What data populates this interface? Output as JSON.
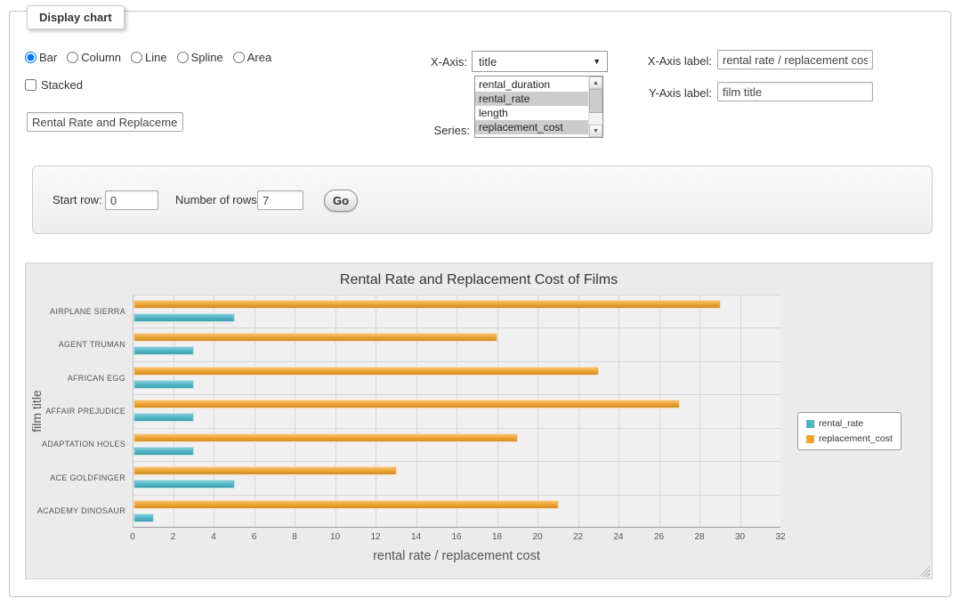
{
  "panel": {
    "legend": "Display chart",
    "chart_type_options": [
      "Bar",
      "Column",
      "Line",
      "Spline",
      "Area"
    ],
    "selected_chart_type": "Bar",
    "stacked_label": "Stacked",
    "stacked_checked": false,
    "title_input_value": "Rental Rate and Replacement Cost of Films",
    "xaxis": {
      "label": "X-Axis:",
      "value": "title"
    },
    "series_picker": {
      "label": "Series:",
      "options": [
        "rental_duration",
        "rental_rate",
        "length",
        "replacement_cost"
      ],
      "selected": [
        "rental_rate",
        "replacement_cost"
      ]
    },
    "xaxis_label": {
      "label": "X-Axis label:",
      "value": "rental rate / replacement cost"
    },
    "yaxis_label": {
      "label": "Y-Axis label:",
      "value": "film title"
    }
  },
  "row_controls": {
    "start_row_label": "Start row:",
    "start_row_value": "0",
    "num_rows_label": "Number of rows:",
    "num_rows_value": "7",
    "go_label": "Go"
  },
  "chart_data": {
    "type": "bar",
    "orientation": "horizontal",
    "title": "Rental Rate and Replacement Cost of Films",
    "categories": [
      "AIRPLANE SIERRA",
      "AGENT TRUMAN",
      "AFRICAN EGG",
      "AFFAIR PREJUDICE",
      "ADAPTATION HOLES",
      "ACE GOLDFINGER",
      "ACADEMY DINOSAUR"
    ],
    "series": [
      {
        "name": "rental_rate",
        "color": "#4db7c6",
        "values": [
          4.99,
          2.99,
          2.99,
          2.99,
          2.99,
          4.99,
          0.99
        ]
      },
      {
        "name": "replacement_cost",
        "color": "#f0a42e",
        "values": [
          28.99,
          17.99,
          22.99,
          26.99,
          18.99,
          12.99,
          20.99
        ]
      }
    ],
    "xlabel": "rental rate / replacement cost",
    "ylabel": "film title",
    "xlim": [
      0,
      32
    ],
    "x_ticks": [
      0,
      2,
      4,
      6,
      8,
      10,
      12,
      14,
      16,
      18,
      20,
      22,
      24,
      26,
      28,
      30,
      32
    ],
    "legend_position": "right",
    "grid": true
  }
}
